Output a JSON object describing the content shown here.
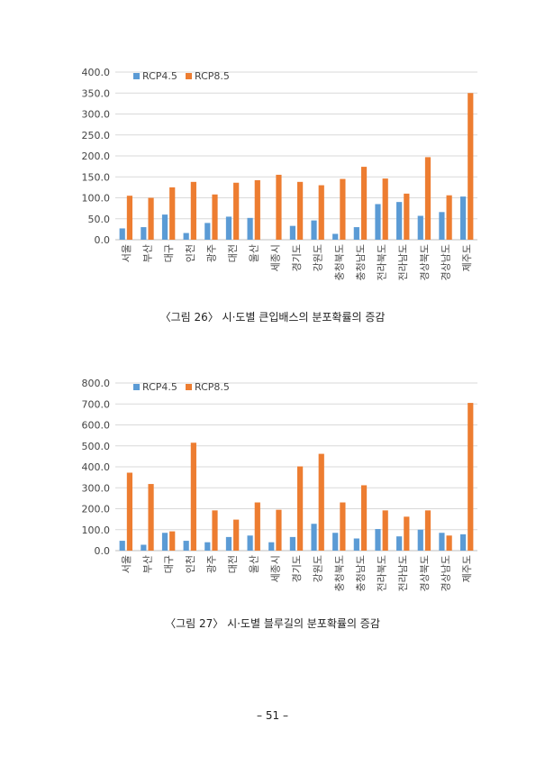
{
  "chart_data": [
    {
      "type": "bar",
      "categories": [
        "서울",
        "부산",
        "대구",
        "인천",
        "광주",
        "대전",
        "울산",
        "세종시",
        "경기도",
        "강원도",
        "충청북도",
        "충청남도",
        "전라북도",
        "전라남도",
        "경상북도",
        "경상남도",
        "제주도"
      ],
      "series": [
        {
          "name": "RCP4.5",
          "color": "#5B9BD5",
          "values": [
            27,
            30,
            60,
            16,
            40,
            55,
            52,
            0,
            33,
            46,
            14,
            30,
            85,
            90,
            57,
            66,
            103
          ]
        },
        {
          "name": "RCP8.5",
          "color": "#ED7D31",
          "values": [
            105,
            100,
            125,
            138,
            108,
            136,
            142,
            155,
            138,
            130,
            145,
            174,
            146,
            110,
            197,
            106,
            350
          ]
        }
      ],
      "ylim": [
        0,
        400
      ],
      "yticks": [
        "0.0",
        "50.0",
        "100.0",
        "150.0",
        "200.0",
        "250.0",
        "300.0",
        "350.0",
        "400.0"
      ],
      "ystep": 50,
      "grid": true,
      "legend": "top-left"
    },
    {
      "type": "bar",
      "categories": [
        "서울",
        "부산",
        "대구",
        "인천",
        "광주",
        "대전",
        "울산",
        "세종시",
        "경기도",
        "강원도",
        "충청북도",
        "충청남도",
        "전라북도",
        "전라남도",
        "경상북도",
        "경상남도",
        "제주도"
      ],
      "series": [
        {
          "name": "RCP4.5",
          "color": "#5B9BD5",
          "values": [
            47,
            28,
            85,
            47,
            40,
            65,
            72,
            40,
            65,
            128,
            85,
            58,
            103,
            68,
            100,
            85,
            78
          ]
        },
        {
          "name": "RCP8.5",
          "color": "#ED7D31",
          "values": [
            372,
            318,
            92,
            515,
            192,
            148,
            230,
            195,
            402,
            462,
            230,
            312,
            192,
            162,
            192,
            72,
            705
          ]
        }
      ],
      "ylim": [
        0,
        800
      ],
      "yticks": [
        "0.0",
        "100.0",
        "200.0",
        "300.0",
        "400.0",
        "500.0",
        "600.0",
        "700.0",
        "800.0"
      ],
      "ystep": 100,
      "grid": true,
      "legend": "top-left"
    }
  ],
  "captions": {
    "fig26": "〈그림 26〉 시·도별 큰입배스의 분포확률의 증감",
    "fig27": "〈그림 27〉 시·도별 블루길의 분포확률의 증감"
  },
  "page_number": "– 51 –"
}
